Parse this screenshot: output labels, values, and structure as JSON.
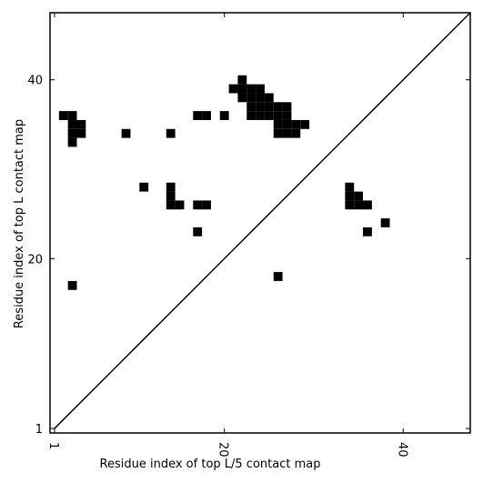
{
  "chart_data": {
    "type": "scatter",
    "xlabel": "Residue index of top L/5 contact map",
    "ylabel": "Residue index of top L contact map",
    "xlim": [
      0.5,
      47.5
    ],
    "ylim": [
      0.5,
      47.5
    ],
    "xticks": [
      1,
      20,
      40
    ],
    "yticks": [
      1,
      20,
      40
    ],
    "series": [
      {
        "color": "#000000",
        "x": [
          2,
          3,
          3,
          4,
          3,
          4,
          3,
          9,
          14,
          11,
          14,
          14,
          14,
          15,
          17,
          18,
          17,
          17,
          18,
          20,
          22,
          21,
          22,
          23,
          24,
          22,
          23,
          24,
          25,
          23,
          24,
          25,
          26,
          27,
          23,
          24,
          25,
          26,
          27,
          26,
          27,
          28,
          29,
          26,
          27,
          28
        ],
        "y": [
          36,
          36,
          35,
          35,
          34,
          34,
          33,
          34,
          34,
          28,
          28,
          27,
          26,
          26,
          26,
          26,
          23,
          36,
          36,
          36,
          40,
          39,
          39,
          39,
          39,
          38,
          38,
          38,
          38,
          37,
          37,
          37,
          37,
          37,
          36,
          36,
          36,
          36,
          36,
          35,
          35,
          35,
          35,
          34,
          34,
          34
        ]
      },
      {
        "color": "#000000",
        "x": [
          3,
          26,
          34,
          34,
          35,
          34,
          35,
          36,
          38,
          36
        ],
        "y": [
          17,
          18,
          28,
          27,
          27,
          26,
          26,
          26,
          24,
          23
        ]
      }
    ]
  }
}
